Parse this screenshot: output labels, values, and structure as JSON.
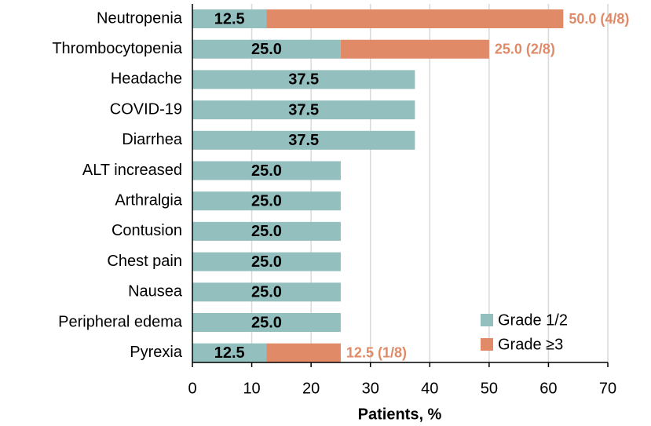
{
  "chart_data": {
    "type": "stacked-barh",
    "xlabel": "Patients, %",
    "categories": [
      "Neutropenia",
      "Thrombocytopenia",
      "Headache",
      "COVID-19",
      "Diarrhea",
      "ALT increased",
      "Arthralgia",
      "Contusion",
      "Chest pain",
      "Nausea",
      "Peripheral edema",
      "Pyrexia"
    ],
    "series": [
      {
        "name": "Grade 1/2",
        "color": "#93bfbf",
        "values": [
          12.5,
          25,
          37.5,
          37.5,
          37.5,
          25,
          25,
          25,
          25,
          25,
          25,
          12.5
        ],
        "value_labels": [
          "12.5",
          "25.0",
          "37.5",
          "37.5",
          "37.5",
          "25.0",
          "25.0",
          "25.0",
          "25.0",
          "25.0",
          "25.0",
          "12.5"
        ]
      },
      {
        "name": "Grade ≥3",
        "color": "#e08a68",
        "values": [
          50,
          25,
          null,
          null,
          null,
          null,
          null,
          null,
          null,
          null,
          null,
          12.5
        ],
        "value_labels": [
          "50.0 (4/8)",
          "25.0 (2/8)",
          null,
          null,
          null,
          null,
          null,
          null,
          null,
          null,
          null,
          "12.5 (1/8)"
        ]
      }
    ],
    "xlim": [
      0,
      70
    ],
    "xticks": [
      0,
      10,
      20,
      30,
      40,
      50,
      60,
      70
    ],
    "grid": true,
    "legend": "lower right"
  }
}
